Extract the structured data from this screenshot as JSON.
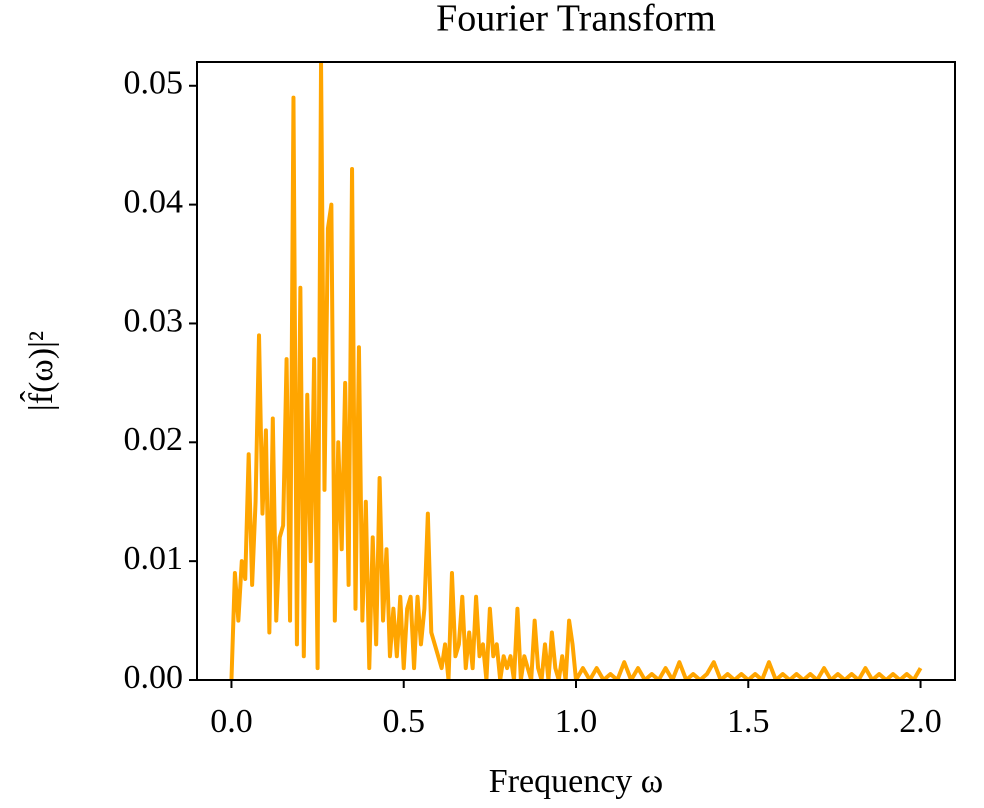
{
  "chart_data": {
    "type": "line",
    "title": "Fourier Transform",
    "x_label": "Frequency ω",
    "y_label": "|f̂(ω)|²",
    "x": [
      0.0,
      0.01,
      0.02,
      0.03,
      0.04,
      0.05,
      0.06,
      0.07,
      0.08,
      0.09,
      0.1,
      0.11,
      0.12,
      0.13,
      0.14,
      0.15,
      0.16,
      0.17,
      0.18,
      0.19,
      0.2,
      0.21,
      0.22,
      0.23,
      0.24,
      0.25,
      0.26,
      0.27,
      0.28,
      0.29,
      0.3,
      0.31,
      0.32,
      0.33,
      0.34,
      0.35,
      0.36,
      0.37,
      0.38,
      0.39,
      0.4,
      0.41,
      0.42,
      0.43,
      0.44,
      0.45,
      0.46,
      0.47,
      0.48,
      0.49,
      0.5,
      0.51,
      0.52,
      0.53,
      0.54,
      0.55,
      0.56,
      0.57,
      0.58,
      0.59,
      0.6,
      0.61,
      0.62,
      0.63,
      0.64,
      0.65,
      0.66,
      0.67,
      0.68,
      0.69,
      0.7,
      0.71,
      0.72,
      0.73,
      0.74,
      0.75,
      0.76,
      0.77,
      0.78,
      0.79,
      0.8,
      0.81,
      0.82,
      0.83,
      0.84,
      0.85,
      0.86,
      0.87,
      0.88,
      0.89,
      0.9,
      0.91,
      0.92,
      0.93,
      0.94,
      0.95,
      0.96,
      0.97,
      0.98,
      0.99,
      1.0,
      1.02,
      1.04,
      1.06,
      1.08,
      1.1,
      1.12,
      1.14,
      1.16,
      1.18,
      1.2,
      1.22,
      1.24,
      1.26,
      1.28,
      1.3,
      1.32,
      1.34,
      1.36,
      1.38,
      1.4,
      1.42,
      1.44,
      1.46,
      1.48,
      1.5,
      1.52,
      1.54,
      1.56,
      1.58,
      1.6,
      1.62,
      1.64,
      1.66,
      1.68,
      1.7,
      1.72,
      1.74,
      1.76,
      1.78,
      1.8,
      1.82,
      1.84,
      1.86,
      1.88,
      1.9,
      1.92,
      1.94,
      1.96,
      1.98,
      2.0
    ],
    "series": [
      {
        "color": "#ffa500",
        "values": [
          0.0,
          0.009,
          0.005,
          0.01,
          0.0085,
          0.019,
          0.008,
          0.015,
          0.029,
          0.014,
          0.021,
          0.004,
          0.022,
          0.005,
          0.012,
          0.013,
          0.027,
          0.005,
          0.049,
          0.003,
          0.033,
          0.002,
          0.024,
          0.01,
          0.027,
          0.001,
          0.052,
          0.016,
          0.038,
          0.04,
          0.005,
          0.02,
          0.011,
          0.025,
          0.008,
          0.043,
          0.006,
          0.028,
          0.005,
          0.015,
          0.001,
          0.012,
          0.003,
          0.017,
          0.005,
          0.011,
          0.002,
          0.006,
          0.002,
          0.007,
          0.001,
          0.006,
          0.007,
          0.001,
          0.007,
          0.003,
          0.006,
          0.014,
          0.004,
          0.003,
          0.002,
          0.001,
          0.003,
          0.0,
          0.009,
          0.002,
          0.003,
          0.007,
          0.001,
          0.004,
          0.001,
          0.007,
          0.002,
          0.003,
          0.0,
          0.006,
          0.002,
          0.003,
          0.0,
          0.002,
          0.001,
          0.002,
          0.0,
          0.006,
          0.0,
          0.002,
          0.001,
          0.0,
          0.005,
          0.001,
          0.0,
          0.003,
          0.0,
          0.004,
          0.001,
          0.0,
          0.002,
          0.0,
          0.005,
          0.003,
          0.0,
          0.001,
          0.0,
          0.001,
          0.0,
          0.0005,
          0.0,
          0.0015,
          0.0,
          0.001,
          0.0,
          0.0005,
          0.0,
          0.001,
          0.0,
          0.0015,
          0.0,
          0.0005,
          0.0,
          0.0005,
          0.0015,
          0.0,
          0.0005,
          0.0,
          0.0005,
          0.0,
          0.0005,
          0.0,
          0.0015,
          0.0,
          0.0005,
          0.0,
          0.0005,
          0.0,
          0.0005,
          0.0,
          0.001,
          0.0,
          0.0005,
          0.0,
          0.0005,
          0.0,
          0.001,
          0.0,
          0.0005,
          0.0,
          0.0005,
          0.0,
          0.0005,
          0.0,
          0.001
        ]
      }
    ],
    "xlim": [
      -0.1,
      2.1
    ],
    "ylim": [
      0,
      0.052
    ],
    "xticks": [
      {
        "value": 0,
        "label": "0.0"
      },
      0.5,
      {
        "value": 1,
        "label": "1.0"
      },
      1.5,
      {
        "value": 2,
        "label": "2.0"
      }
    ],
    "yticks": [
      {
        "value": 0,
        "label": "0.00"
      },
      0.01,
      0.02,
      0.03,
      0.04,
      0.05
    ]
  }
}
